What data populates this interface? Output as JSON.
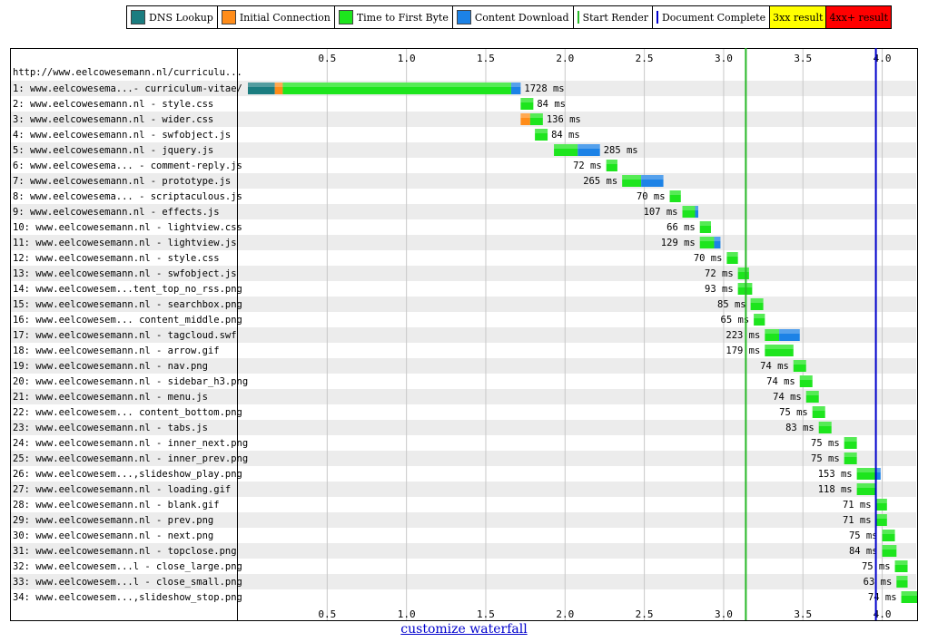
{
  "legend": [
    {
      "label": "DNS Lookup",
      "kind": "box",
      "color": "#1b7d80"
    },
    {
      "label": "Initial Connection",
      "kind": "box",
      "color": "#ff8c19"
    },
    {
      "label": "Time to First Byte",
      "kind": "box",
      "color": "#1de51d"
    },
    {
      "label": "Content Download",
      "kind": "box",
      "color": "#1c82e6"
    },
    {
      "label": "Start Render",
      "kind": "line",
      "color": "#28b828"
    },
    {
      "label": "Document Complete",
      "kind": "line",
      "color": "#0000cc"
    },
    {
      "label": "3xx result",
      "kind": "fill",
      "color": "#ffff00"
    },
    {
      "label": "4xx+ result",
      "kind": "fill",
      "color": "#ff0000"
    }
  ],
  "chart_data": {
    "type": "waterfall",
    "page_url": "http://www.eelcowesemann.nl/curriculu...",
    "ticks": [
      "0.5",
      "1.0",
      "1.5",
      "2.0",
      "2.5",
      "3.0",
      "3.5",
      "4.0"
    ],
    "xlim": [
      0,
      4.22
    ],
    "markers": {
      "start_render": 3.14,
      "document_complete": 3.96
    },
    "requests": [
      {
        "label": "1: www.eelcowesema...- curriculum-vitae/",
        "time": "1728 ms",
        "segments": {
          "dns": [
            0.0,
            0.17
          ],
          "connect": [
            0.17,
            0.22
          ],
          "ttfb": [
            0.22,
            1.66
          ],
          "download": [
            1.66,
            1.72
          ]
        }
      },
      {
        "label": "2: www.eelcowesemann.nl - style.css",
        "time": "84 ms",
        "segments": {
          "ttfb": [
            1.72,
            1.8
          ]
        }
      },
      {
        "label": "3: www.eelcowesemann.nl - wider.css",
        "time": "136 ms",
        "segments": {
          "connect": [
            1.72,
            1.78
          ],
          "ttfb": [
            1.78,
            1.86
          ]
        }
      },
      {
        "label": "4: www.eelcowesemann.nl - swfobject.js",
        "time": "84 ms",
        "segments": {
          "ttfb": [
            1.81,
            1.89
          ]
        }
      },
      {
        "label": "5: www.eelcowesemann.nl - jquery.js",
        "time": "285 ms",
        "segments": {
          "ttfb": [
            1.93,
            2.08
          ],
          "download": [
            2.08,
            2.22
          ]
        }
      },
      {
        "label": "6: www.eelcowesema... - comment-reply.js",
        "time": "72 ms",
        "segments": {
          "ttfb": [
            2.26,
            2.33
          ]
        }
      },
      {
        "label": "7: www.eelcowesemann.nl - prototype.js",
        "time": "265 ms",
        "segments": {
          "ttfb": [
            2.36,
            2.48
          ],
          "download": [
            2.48,
            2.62
          ]
        }
      },
      {
        "label": "8: www.eelcowesema... - scriptaculous.js",
        "time": "70 ms",
        "segments": {
          "ttfb": [
            2.66,
            2.73
          ]
        }
      },
      {
        "label": "9: www.eelcowesemann.nl - effects.js",
        "time": "107 ms",
        "segments": {
          "ttfb": [
            2.74,
            2.82
          ],
          "download": [
            2.82,
            2.84
          ]
        }
      },
      {
        "label": "10: www.eelcowesemann.nl - lightview.css",
        "time": "66 ms",
        "segments": {
          "ttfb": [
            2.85,
            2.92
          ]
        }
      },
      {
        "label": "11: www.eelcowesemann.nl - lightview.js",
        "time": "129 ms",
        "segments": {
          "ttfb": [
            2.85,
            2.94
          ],
          "download": [
            2.94,
            2.98
          ]
        }
      },
      {
        "label": "12: www.eelcowesemann.nl - style.css",
        "time": "70 ms",
        "segments": {
          "ttfb": [
            3.02,
            3.09
          ]
        }
      },
      {
        "label": "13: www.eelcowesemann.nl - swfobject.js",
        "time": "72 ms",
        "segments": {
          "ttfb": [
            3.09,
            3.16
          ]
        }
      },
      {
        "label": "14: www.eelcowesem...tent_top_no_rss.png",
        "time": "93 ms",
        "segments": {
          "ttfb": [
            3.09,
            3.18
          ]
        }
      },
      {
        "label": "15: www.eelcowesemann.nl - searchbox.png",
        "time": "85 ms",
        "segments": {
          "ttfb": [
            3.17,
            3.25
          ]
        }
      },
      {
        "label": "16: www.eelcowesem... content_middle.png",
        "time": "65 ms",
        "segments": {
          "ttfb": [
            3.19,
            3.26
          ]
        }
      },
      {
        "label": "17: www.eelcowesemann.nl - tagcloud.swf",
        "time": "223 ms",
        "segments": {
          "ttfb": [
            3.26,
            3.35
          ],
          "download": [
            3.35,
            3.48
          ]
        }
      },
      {
        "label": "18: www.eelcowesemann.nl - arrow.gif",
        "time": "179 ms",
        "segments": {
          "ttfb": [
            3.26,
            3.44
          ]
        }
      },
      {
        "label": "19: www.eelcowesemann.nl - nav.png",
        "time": "74 ms",
        "segments": {
          "ttfb": [
            3.44,
            3.52
          ]
        }
      },
      {
        "label": "20: www.eelcowesemann.nl - sidebar_h3.png",
        "time": "74 ms",
        "segments": {
          "ttfb": [
            3.48,
            3.56
          ]
        }
      },
      {
        "label": "21: www.eelcowesemann.nl - menu.js",
        "time": "74 ms",
        "segments": {
          "ttfb": [
            3.52,
            3.6
          ]
        }
      },
      {
        "label": "22: www.eelcowesem... content_bottom.png",
        "time": "75 ms",
        "segments": {
          "ttfb": [
            3.56,
            3.64
          ]
        }
      },
      {
        "label": "23: www.eelcowesemann.nl - tabs.js",
        "time": "83 ms",
        "segments": {
          "ttfb": [
            3.6,
            3.68
          ]
        }
      },
      {
        "label": "24: www.eelcowesemann.nl - inner_next.png",
        "time": "75 ms",
        "segments": {
          "ttfb": [
            3.76,
            3.84
          ]
        }
      },
      {
        "label": "25: www.eelcowesemann.nl - inner_prev.png",
        "time": "75 ms",
        "segments": {
          "ttfb": [
            3.76,
            3.84
          ]
        }
      },
      {
        "label": "26: www.eelcowesem...,slideshow_play.png",
        "time": "153 ms",
        "segments": {
          "ttfb": [
            3.84,
            3.96
          ],
          "download": [
            3.96,
            3.99
          ]
        }
      },
      {
        "label": "27: www.eelcowesemann.nl - loading.gif",
        "time": "118 ms",
        "segments": {
          "ttfb": [
            3.84,
            3.96
          ]
        }
      },
      {
        "label": "28: www.eelcowesemann.nl - blank.gif",
        "time": "71 ms",
        "segments": {
          "ttfb": [
            3.96,
            4.03
          ]
        }
      },
      {
        "label": "29: www.eelcowesemann.nl - prev.png",
        "time": "71 ms",
        "segments": {
          "ttfb": [
            3.96,
            4.03
          ]
        }
      },
      {
        "label": "30: www.eelcowesemann.nl - next.png",
        "time": "75 ms",
        "segments": {
          "ttfb": [
            4.0,
            4.08
          ]
        }
      },
      {
        "label": "31: www.eelcowesemann.nl - topclose.png",
        "time": "84 ms",
        "segments": {
          "ttfb": [
            4.0,
            4.09
          ]
        }
      },
      {
        "label": "32: www.eelcowesem...l - close_large.png",
        "time": "75 ms",
        "segments": {
          "ttfb": [
            4.08,
            4.16
          ]
        }
      },
      {
        "label": "33: www.eelcowesem...l - close_small.png",
        "time": "63 ms",
        "segments": {
          "ttfb": [
            4.09,
            4.16
          ]
        }
      },
      {
        "label": "34: www.eelcowesem...,slideshow_stop.png",
        "time": "74 ms",
        "segments": {
          "ttfb": [
            4.12,
            4.22
          ]
        }
      }
    ]
  },
  "customize_link": "customize waterfall"
}
